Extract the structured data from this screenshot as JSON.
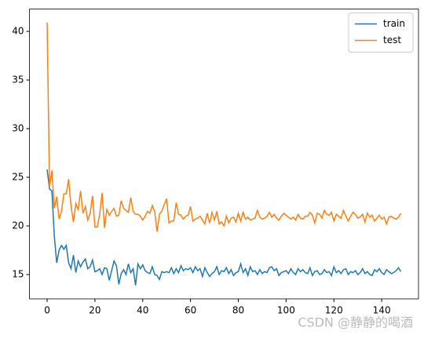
{
  "chart_data": {
    "type": "line",
    "x": [
      0,
      1,
      2,
      3,
      4,
      5,
      6,
      7,
      8,
      9,
      10,
      11,
      12,
      13,
      14,
      15,
      16,
      17,
      18,
      19,
      20,
      21,
      22,
      23,
      24,
      25,
      26,
      27,
      28,
      29,
      30,
      31,
      32,
      33,
      34,
      35,
      36,
      37,
      38,
      39,
      40,
      41,
      42,
      43,
      44,
      45,
      46,
      47,
      48,
      49,
      50,
      51,
      52,
      53,
      54,
      55,
      56,
      57,
      58,
      59,
      60,
      61,
      62,
      63,
      64,
      65,
      66,
      67,
      68,
      69,
      70,
      71,
      72,
      73,
      74,
      75,
      76,
      77,
      78,
      79,
      80,
      81,
      82,
      83,
      84,
      85,
      86,
      87,
      88,
      89,
      90,
      91,
      92,
      93,
      94,
      95,
      96,
      97,
      98,
      99,
      100,
      101,
      102,
      103,
      104,
      105,
      106,
      107,
      108,
      109,
      110,
      111,
      112,
      113,
      114,
      115,
      116,
      117,
      118,
      119,
      120,
      121,
      122,
      123,
      124,
      125,
      126,
      127,
      128,
      129,
      130,
      131,
      132,
      133,
      134,
      135,
      136,
      137,
      138,
      139,
      140,
      141,
      142,
      143,
      144,
      145,
      146,
      147,
      148
    ],
    "series": [
      {
        "name": "train",
        "color": "#1f77b4",
        "values": [
          25.8,
          23.8,
          23.6,
          19.0,
          16.2,
          17.5,
          18.0,
          17.6,
          18.0,
          16.2,
          15.6,
          17.0,
          15.2,
          16.4,
          15.8,
          16.3,
          16.6,
          15.6,
          15.8,
          16.5,
          15.3,
          15.4,
          15.6,
          15.0,
          15.7,
          15.6,
          14.4,
          15.4,
          16.4,
          15.9,
          14.0,
          15.1,
          15.5,
          15.0,
          16.1,
          15.2,
          15.6,
          13.9,
          16.1,
          15.6,
          16.0,
          15.4,
          15.2,
          15.1,
          15.8,
          15.0,
          14.9,
          14.5,
          15.3,
          15.2,
          15.3,
          15.2,
          15.7,
          15.1,
          15.6,
          15.2,
          15.9,
          15.4,
          15.6,
          15.5,
          15.7,
          15.2,
          15.8,
          15.4,
          15.6,
          14.8,
          15.7,
          15.2,
          14.8,
          15.1,
          15.3,
          15.8,
          15.0,
          15.4,
          15.3,
          15.7,
          15.1,
          15.5,
          14.9,
          15.2,
          15.3,
          16.1,
          15.2,
          15.6,
          14.9,
          15.8,
          15.3,
          15.4,
          15.0,
          15.5,
          15.1,
          15.3,
          15.2,
          15.7,
          15.8,
          15.4,
          15.6,
          14.9,
          15.2,
          15.3,
          15.4,
          15.1,
          15.6,
          15.2,
          15.0,
          15.6,
          15.3,
          15.5,
          15.2,
          15.1,
          15.7,
          14.9,
          15.3,
          15.4,
          15.0,
          15.1,
          15.5,
          15.2,
          15.3,
          14.9,
          15.8,
          15.2,
          15.4,
          15.1,
          15.5,
          15.6,
          15.0,
          15.3,
          15.2,
          15.4,
          15.0,
          15.2,
          15.6,
          15.1,
          15.3,
          15.0,
          14.9,
          15.5,
          15.3,
          15.6,
          15.2,
          15.0,
          15.5,
          15.3,
          15.1,
          15.2,
          15.4,
          15.7,
          15.3
        ]
      },
      {
        "name": "test",
        "color": "#ff7f0e",
        "values": [
          40.9,
          24.0,
          25.7,
          21.8,
          23.0,
          20.7,
          21.5,
          23.3,
          23.3,
          24.8,
          22.0,
          20.4,
          22.3,
          21.7,
          23.6,
          21.3,
          22.0,
          20.6,
          21.3,
          23.1,
          19.9,
          19.9,
          21.2,
          23.4,
          19.8,
          21.7,
          21.1,
          21.5,
          21.8,
          21.0,
          21.1,
          22.6,
          21.8,
          21.6,
          21.4,
          22.9,
          21.5,
          21.2,
          21.2,
          21.0,
          20.6,
          21.0,
          21.5,
          21.3,
          22.1,
          21.5,
          19.4,
          21.2,
          21.5,
          22.2,
          22.8,
          20.3,
          20.5,
          20.5,
          22.4,
          21.2,
          21.1,
          20.7,
          21.0,
          21.1,
          22.0,
          20.5,
          20.7,
          20.8,
          21.0,
          20.6,
          20.2,
          21.3,
          20.3,
          21.4,
          20.6,
          21.5,
          20.2,
          20.4,
          20.0,
          21.0,
          20.3,
          20.8,
          20.9,
          20.4,
          21.3,
          20.5,
          21.4,
          20.7,
          20.9,
          20.6,
          20.7,
          20.8,
          21.6,
          20.9,
          20.7,
          20.8,
          21.0,
          21.4,
          20.9,
          21.2,
          20.8,
          20.6,
          21.0,
          21.3,
          21.1,
          20.9,
          20.7,
          20.9,
          20.6,
          21.2,
          20.8,
          20.7,
          21.0,
          21.0,
          21.4,
          21.1,
          20.3,
          21.3,
          21.2,
          20.8,
          21.6,
          21.2,
          21.1,
          21.4,
          20.5,
          21.2,
          21.0,
          20.8,
          21.6,
          21.0,
          20.5,
          21.0,
          21.4,
          21.2,
          20.8,
          20.9,
          21.2,
          20.4,
          21.3,
          20.9,
          21.1,
          20.5,
          20.8,
          21.1,
          20.7,
          20.9,
          20.2,
          20.9,
          21.0,
          20.8,
          20.7,
          20.9,
          21.3
        ]
      }
    ],
    "xlim": [
      -7.4,
      155.4
    ],
    "ylim": [
      12.5,
      42.3
    ],
    "xticks": [
      0,
      20,
      40,
      60,
      80,
      100,
      120,
      140
    ],
    "yticks": [
      15,
      20,
      25,
      30,
      35,
      40
    ],
    "legend": "upper right",
    "grid": false
  },
  "watermark": "CSDN @静静的喝酒"
}
